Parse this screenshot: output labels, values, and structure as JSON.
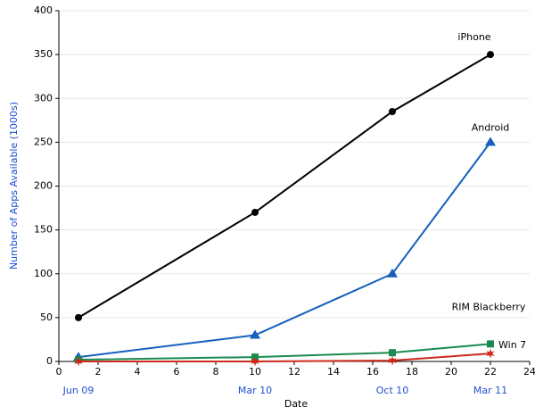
{
  "chart_data": {
    "type": "line",
    "xlabel": "Date",
    "ylabel": "Number of Apps Available (1000s)",
    "x": [
      1,
      10,
      17,
      22
    ],
    "series": [
      {
        "name": "iPhone",
        "color": "#000000",
        "marker": "circle",
        "values": [
          50,
          170,
          285,
          350
        ]
      },
      {
        "name": "Android",
        "color": "#1560bd",
        "marker": "triangle",
        "values": [
          5,
          30,
          100,
          250
        ]
      },
      {
        "name": "RIM Blackberry",
        "color": "#1a8a50",
        "marker": "square",
        "values": [
          2,
          5,
          10,
          20
        ]
      },
      {
        "name": "Win 7",
        "color": "#cc2a1a",
        "marker": "star",
        "values": [
          0,
          0,
          1,
          9
        ]
      }
    ],
    "date_labels": [
      {
        "x": 1,
        "label": "Jun 09"
      },
      {
        "x": 10,
        "label": "Mar 10"
      },
      {
        "x": 17,
        "label": "Oct 10"
      },
      {
        "x": 22,
        "label": "Mar 11"
      }
    ],
    "xlim": [
      0,
      24
    ],
    "xticks": [
      0,
      2,
      4,
      6,
      8,
      10,
      12,
      14,
      16,
      18,
      20,
      22,
      24
    ],
    "ylim": [
      0,
      400
    ],
    "yticks": [
      0,
      50,
      100,
      150,
      200,
      250,
      300,
      350,
      400
    ],
    "grid": true
  }
}
